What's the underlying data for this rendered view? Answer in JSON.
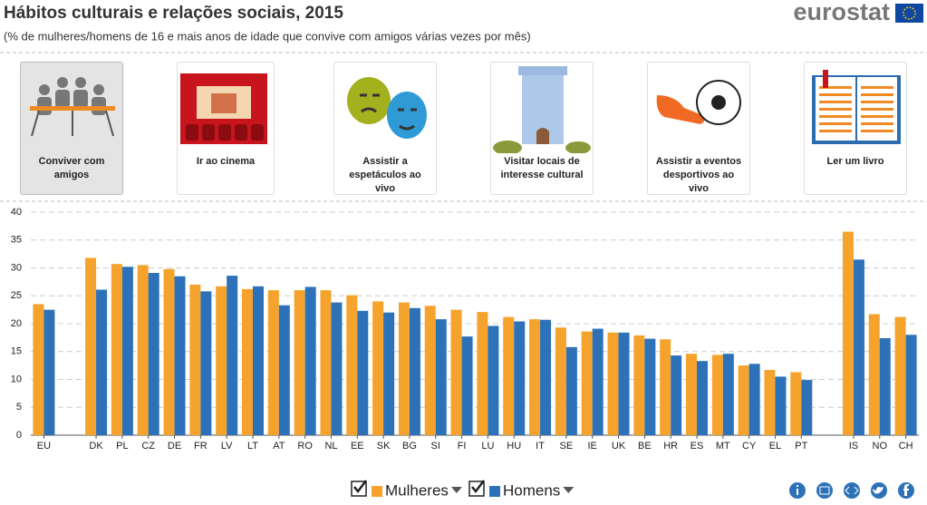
{
  "header": {
    "title": "Hábitos culturais e relações sociais, 2015",
    "subtitle": "(% de mulheres/homens de 16 e mais anos de idade que convive com amigos várias vezes por mês)",
    "logo": "eurostat"
  },
  "tabs": [
    "Conviver com amigos",
    "Ir ao cinema",
    "Assistir a espetáculos ao vivo",
    "Visitar locais de interesse cultural",
    "Assistir a eventos desportivos ao vivo",
    "Ler um livro"
  ],
  "chart_data": {
    "type": "bar",
    "categories": [
      "EU",
      null,
      "DK",
      "PL",
      "CZ",
      "DE",
      "FR",
      "LV",
      "LT",
      "AT",
      "RO",
      "NL",
      "EE",
      "SK",
      "BG",
      "SI",
      "FI",
      "LU",
      "HU",
      "IT",
      "SE",
      "IE",
      "UK",
      "BE",
      "HR",
      "ES",
      "MT",
      "CY",
      "EL",
      "PT",
      null,
      "IS",
      "NO",
      "CH"
    ],
    "series": [
      {
        "name": "Mulheres",
        "color": "#f5a32c",
        "values": [
          23.5,
          null,
          31.8,
          30.7,
          30.5,
          29.8,
          27.0,
          26.7,
          26.2,
          26.0,
          26.0,
          26.0,
          25.1,
          24.0,
          23.8,
          23.2,
          22.5,
          22.1,
          21.2,
          20.8,
          19.3,
          18.6,
          18.4,
          17.9,
          17.2,
          14.6,
          14.4,
          12.5,
          11.7,
          11.3,
          null,
          36.5,
          21.7,
          21.2
        ]
      },
      {
        "name": "Homens",
        "color": "#2d72b8",
        "values": [
          22.5,
          null,
          26.1,
          30.2,
          29.1,
          28.5,
          25.8,
          28.6,
          26.7,
          23.3,
          26.6,
          23.8,
          22.3,
          22.0,
          22.8,
          20.8,
          17.7,
          19.6,
          20.4,
          20.7,
          15.8,
          19.1,
          18.4,
          17.3,
          14.3,
          13.3,
          14.6,
          12.8,
          10.5,
          9.9,
          null,
          31.5,
          17.4,
          18.0
        ]
      }
    ],
    "ylim": [
      0,
      40
    ],
    "yticks": [
      0,
      5,
      10,
      15,
      20,
      25,
      30,
      35,
      40
    ],
    "grid": true
  }
}
